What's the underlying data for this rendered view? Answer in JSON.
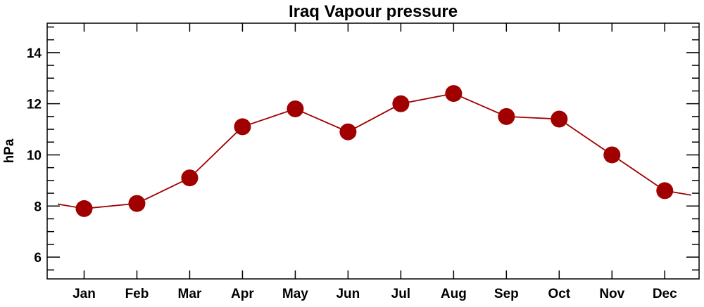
{
  "chart_data": {
    "type": "line",
    "title": "Iraq Vapour pressure",
    "xlabel": "",
    "ylabel": "hPa",
    "categories": [
      "Jan",
      "Feb",
      "Mar",
      "Apr",
      "May",
      "Jun",
      "Jul",
      "Aug",
      "Sep",
      "Oct",
      "Nov",
      "Dec"
    ],
    "series": [
      {
        "name": "Vapour pressure",
        "values": [
          7.9,
          8.1,
          9.1,
          11.1,
          11.8,
          10.9,
          12.0,
          12.4,
          11.5,
          11.4,
          10.0,
          8.6
        ],
        "color": "#a00000"
      }
    ],
    "yticks": [
      6,
      8,
      10,
      12,
      14
    ],
    "ylim": [
      5.15,
      15.15
    ],
    "xlim": [
      0.3,
      12.65
    ],
    "grid": false,
    "legend": "none"
  }
}
